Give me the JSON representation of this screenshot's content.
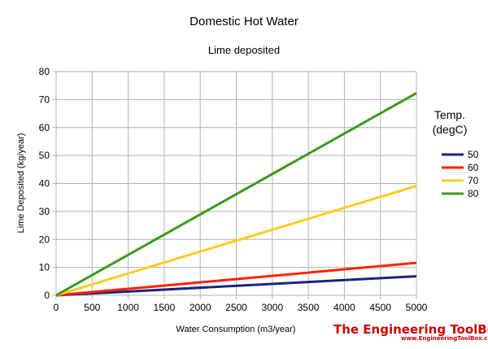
{
  "chart_data": {
    "type": "line",
    "title": "Domestic Hot Water",
    "subtitle": "Lime deposited",
    "xlabel": "Water Consumption (m3/year)",
    "ylabel": "Lime Deposited (kg/year)",
    "xlim": [
      0,
      5000
    ],
    "ylim": [
      0,
      80
    ],
    "x_ticks": [
      0,
      500,
      1000,
      1500,
      2000,
      2500,
      3000,
      3500,
      4000,
      4500,
      5000
    ],
    "y_ticks": [
      0,
      10,
      20,
      30,
      40,
      50,
      60,
      70,
      80
    ],
    "grid": true,
    "legend_title_line1": "Temp.",
    "legend_title_line2": "(degC)",
    "legend_position": "right",
    "x": [
      0,
      5000
    ],
    "series": [
      {
        "name": "50",
        "color": "#1a237e",
        "values": [
          0,
          6.8
        ]
      },
      {
        "name": "60",
        "color": "#ff2200",
        "values": [
          0,
          11.6
        ]
      },
      {
        "name": "70",
        "color": "#ffcc22",
        "values": [
          0,
          39.1
        ]
      },
      {
        "name": "80",
        "color": "#3a9a1a",
        "values": [
          0,
          72.3
        ]
      }
    ]
  },
  "branding": {
    "name": "The Engineering ToolBox",
    "url": "www.EngineeringToolBox.com"
  }
}
